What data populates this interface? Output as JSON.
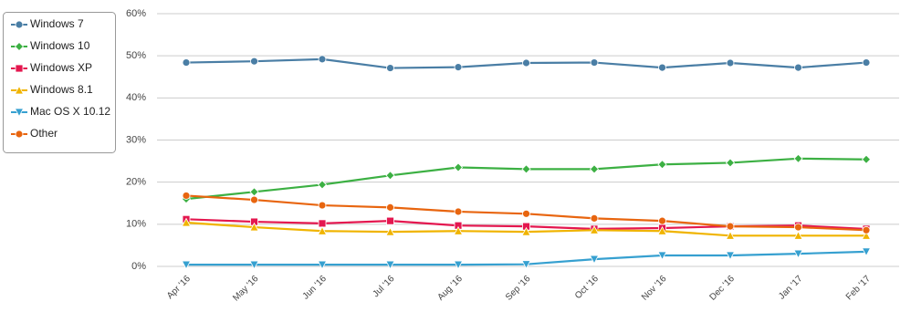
{
  "chart_data": {
    "type": "line",
    "categories": [
      "Apr '16",
      "May '16",
      "Jun '16",
      "Jul '16",
      "Aug '16",
      "Sep '16",
      "Oct '16",
      "Nov '16",
      "Dec '16",
      "Jan '17",
      "Feb '17"
    ],
    "ylim": [
      0,
      60
    ],
    "yticks": [
      {
        "value": 0,
        "label": "0%"
      },
      {
        "value": 10,
        "label": "10%"
      },
      {
        "value": 20,
        "label": "20%"
      },
      {
        "value": 30,
        "label": "30%"
      },
      {
        "value": 40,
        "label": "40%"
      },
      {
        "value": 50,
        "label": "50%"
      },
      {
        "value": 60,
        "label": "60%"
      }
    ],
    "grid": true,
    "legend": "left",
    "series": [
      {
        "name": "Windows 7",
        "color": "#4a7ea5",
        "marker": "circle",
        "values": [
          48.4,
          48.7,
          49.2,
          47.1,
          47.3,
          48.3,
          48.4,
          47.2,
          48.3,
          47.2,
          48.4
        ]
      },
      {
        "name": "Windows 10",
        "color": "#3cb043",
        "marker": "diamond",
        "values": [
          16.0,
          17.7,
          19.4,
          21.6,
          23.5,
          23.1,
          23.1,
          24.2,
          24.6,
          25.6,
          25.4
        ]
      },
      {
        "name": "Windows XP",
        "color": "#e4174f",
        "marker": "square",
        "values": [
          11.2,
          10.6,
          10.2,
          10.8,
          9.7,
          9.5,
          8.9,
          9.1,
          9.5,
          9.7,
          8.9
        ]
      },
      {
        "name": "Windows 8.1",
        "color": "#f0b400",
        "marker": "triangle",
        "values": [
          10.4,
          9.3,
          8.4,
          8.2,
          8.4,
          8.2,
          8.6,
          8.4,
          7.3,
          7.3,
          7.3
        ]
      },
      {
        "name": "Mac OS X 10.12",
        "color": "#36a0d0",
        "marker": "triangle-down",
        "values": [
          0.4,
          0.4,
          0.4,
          0.4,
          0.4,
          0.5,
          1.7,
          2.6,
          2.6,
          3.0,
          3.5
        ]
      },
      {
        "name": "Other",
        "color": "#e8650f",
        "marker": "circle",
        "values": [
          16.8,
          15.8,
          14.5,
          14.0,
          13.0,
          12.5,
          11.4,
          10.8,
          9.5,
          9.3,
          8.6
        ]
      }
    ]
  }
}
